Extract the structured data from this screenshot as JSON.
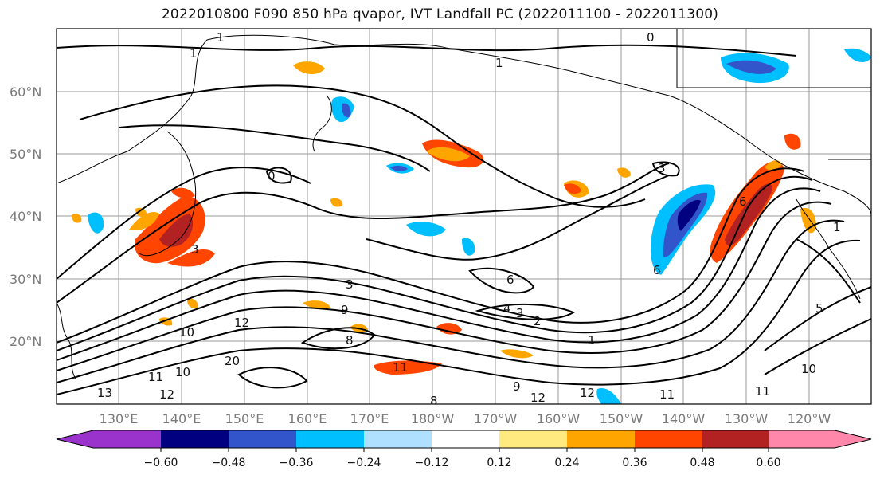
{
  "title": "2022010800 F090 850 hPa qvapor, IVT Landfall PC (2022011100 - 2022011300)",
  "map": {
    "lat_ticks": [
      "60°N",
      "50°N",
      "40°N",
      "30°N",
      "20°N"
    ],
    "lon_ticks": [
      "130°E",
      "140°E",
      "150°E",
      "160°E",
      "170°E",
      "180°W",
      "170°W",
      "160°W",
      "150°W",
      "140°W",
      "130°W",
      "120°W"
    ],
    "contour_labels": [
      "1",
      "1",
      "0",
      "1",
      "3",
      "0",
      "3",
      "3",
      "9",
      "12",
      "10",
      "10",
      "12",
      "20",
      "11",
      "13",
      "8",
      "11",
      "6",
      "4",
      "3",
      "2",
      "1",
      "6",
      "8",
      "9",
      "12",
      "12",
      "11",
      "11",
      "10",
      "5",
      "6",
      "1"
    ]
  },
  "colorbar": {
    "tick_labels": [
      "−0.60",
      "−0.48",
      "−0.36",
      "−0.24",
      "−0.12",
      "0.12",
      "0.24",
      "0.36",
      "0.48",
      "0.60"
    ],
    "colors": [
      "#9933cc",
      "#000080",
      "#3355cc",
      "#00bfff",
      "#b0e0ff",
      "#ffffff",
      "#ffea80",
      "#ffa500",
      "#ff4500",
      "#b22222",
      "#ff88aa"
    ]
  }
}
